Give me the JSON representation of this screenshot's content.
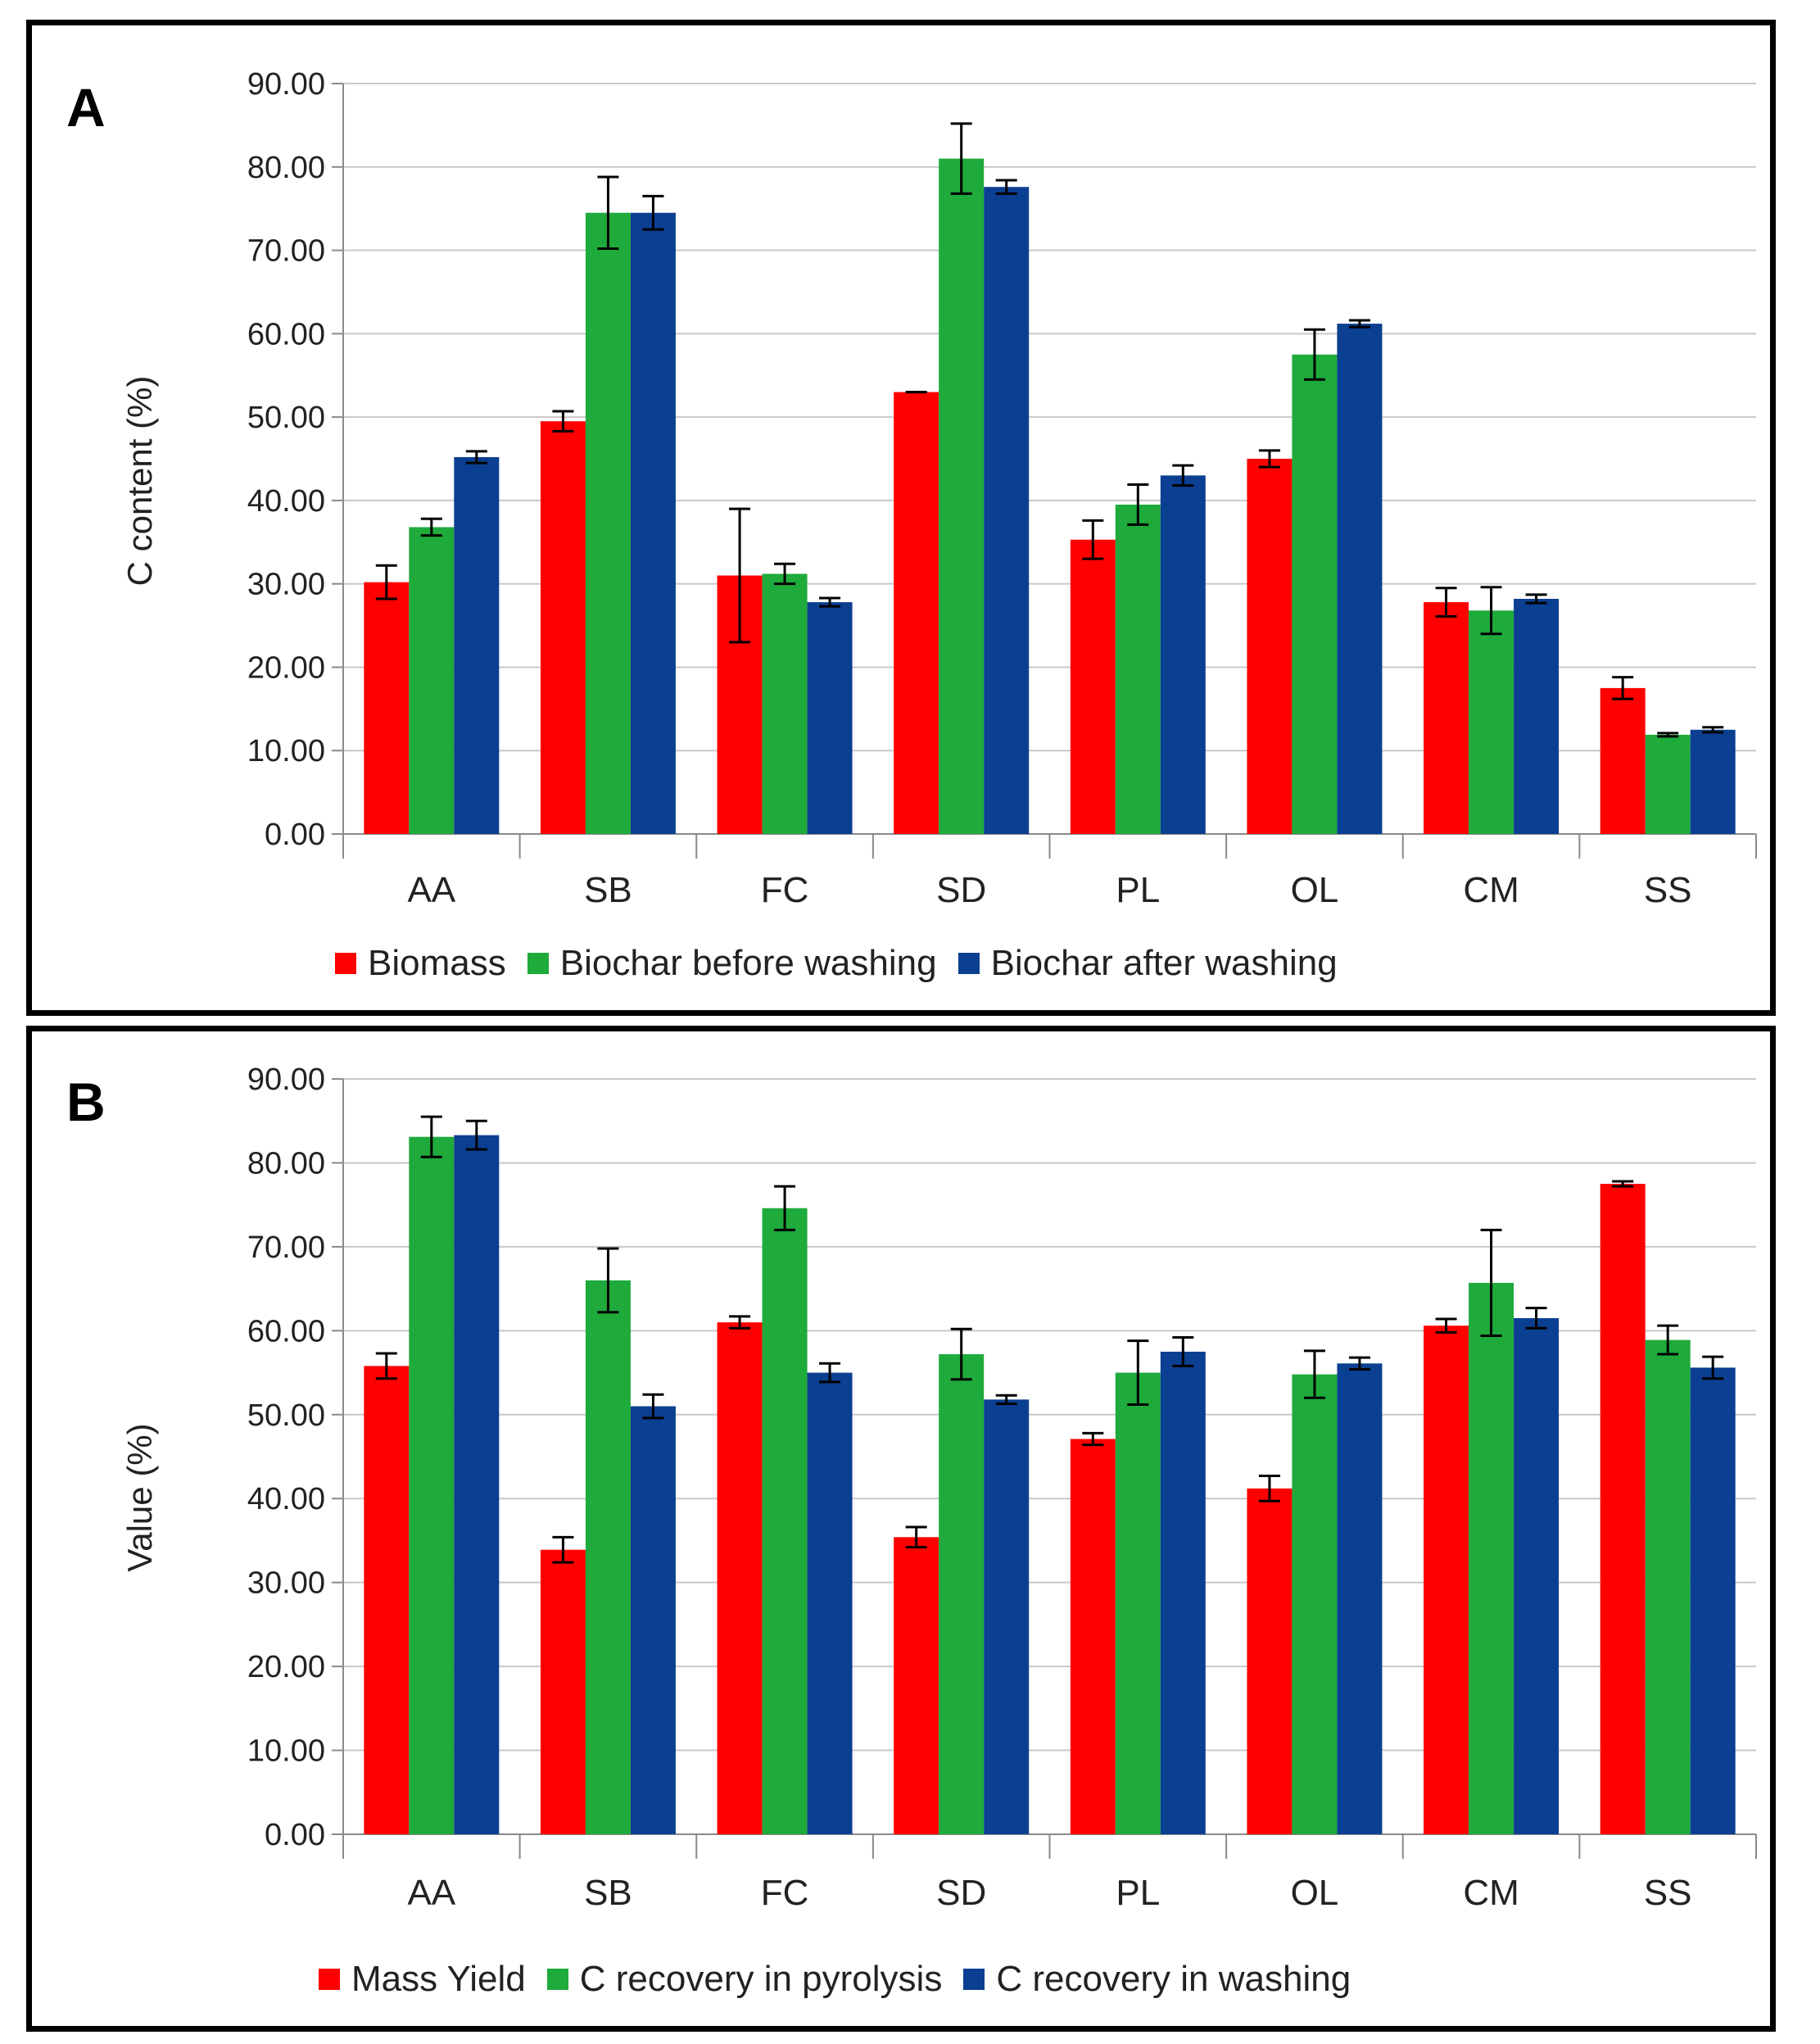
{
  "chart_data": [
    {
      "type": "bar",
      "panel_label": "A",
      "ylabel": "C content (%)",
      "xlabel": "",
      "ylim": [
        0,
        90
      ],
      "yticks": [
        "0.00",
        "10.00",
        "20.00",
        "30.00",
        "40.00",
        "50.00",
        "60.00",
        "70.00",
        "80.00",
        "90.00"
      ],
      "grid": true,
      "legend_position": "bottom",
      "categories": [
        "AA",
        "SB",
        "FC",
        "SD",
        "PL",
        "OL",
        "CM",
        "SS"
      ],
      "series": [
        {
          "name": "Biomass",
          "color": "#ff0000",
          "values": [
            30.2,
            49.5,
            31.0,
            53.0,
            35.3,
            45.0,
            27.8,
            17.5
          ],
          "errors": [
            2.0,
            1.2,
            8.0,
            0.0,
            2.3,
            1.0,
            1.7,
            1.3
          ]
        },
        {
          "name": "Biochar before washing",
          "color": "#1faa3c",
          "values": [
            36.8,
            74.5,
            31.2,
            81.0,
            39.5,
            57.5,
            26.8,
            11.9
          ],
          "errors": [
            1.0,
            4.3,
            1.2,
            4.2,
            2.4,
            3.0,
            2.8,
            0.2
          ]
        },
        {
          "name": "Biochar after washing",
          "color": "#0b3f91",
          "values": [
            45.2,
            74.5,
            27.8,
            77.6,
            43.0,
            61.2,
            28.2,
            12.5
          ],
          "errors": [
            0.7,
            2.0,
            0.5,
            0.8,
            1.2,
            0.4,
            0.5,
            0.3
          ]
        }
      ]
    },
    {
      "type": "bar",
      "panel_label": "B",
      "ylabel": "Value (%)",
      "xlabel": "",
      "ylim": [
        0,
        90
      ],
      "yticks": [
        "0.00",
        "10.00",
        "20.00",
        "30.00",
        "40.00",
        "50.00",
        "60.00",
        "70.00",
        "80.00",
        "90.00"
      ],
      "grid": true,
      "legend_position": "bottom",
      "categories": [
        "AA",
        "SB",
        "FC",
        "SD",
        "PL",
        "OL",
        "CM",
        "SS"
      ],
      "series": [
        {
          "name": "Mass Yield",
          "color": "#ff0000",
          "values": [
            55.8,
            33.9,
            61.0,
            35.4,
            47.1,
            41.2,
            60.6,
            77.5
          ],
          "errors": [
            1.5,
            1.5,
            0.7,
            1.2,
            0.7,
            1.5,
            0.8,
            0.3
          ]
        },
        {
          "name": "C recovery in pyrolysis",
          "color": "#1faa3c",
          "values": [
            83.1,
            66.0,
            74.6,
            57.2,
            55.0,
            54.8,
            65.7,
            58.9
          ],
          "errors": [
            2.4,
            3.8,
            2.6,
            3.0,
            3.8,
            2.8,
            6.3,
            1.7
          ]
        },
        {
          "name": "C recovery in washing",
          "color": "#0b3f91",
          "values": [
            83.3,
            51.0,
            55.0,
            51.8,
            57.5,
            56.1,
            61.5,
            55.6
          ],
          "errors": [
            1.7,
            1.4,
            1.1,
            0.5,
            1.7,
            0.7,
            1.2,
            1.3
          ]
        }
      ]
    }
  ]
}
